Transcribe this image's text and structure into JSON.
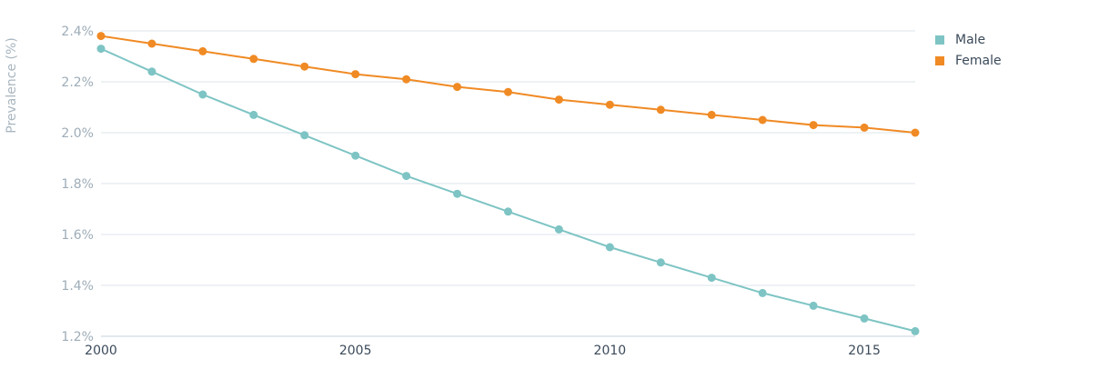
{
  "chart_data": {
    "type": "line",
    "x": [
      2000,
      2001,
      2002,
      2003,
      2004,
      2005,
      2006,
      2007,
      2008,
      2009,
      2010,
      2011,
      2012,
      2013,
      2014,
      2015,
      2016
    ],
    "series": [
      {
        "name": "Male",
        "color": "#7ec4c4",
        "values": [
          2.33,
          2.24,
          2.15,
          2.07,
          1.99,
          1.91,
          1.83,
          1.76,
          1.69,
          1.62,
          1.55,
          1.49,
          1.43,
          1.37,
          1.32,
          1.27,
          1.22
        ]
      },
      {
        "name": "Female",
        "color": "#f08a24",
        "values": [
          2.38,
          2.35,
          2.32,
          2.29,
          2.26,
          2.23,
          2.21,
          2.18,
          2.16,
          2.13,
          2.11,
          2.09,
          2.07,
          2.05,
          2.03,
          2.02,
          2.0
        ]
      }
    ],
    "ylabel": "Prevalence (%)",
    "xlabel": "",
    "ylim": [
      1.2,
      2.4
    ],
    "xlim": [
      2000,
      2016
    ],
    "y_ticks": [
      "1.2%",
      "1.4%",
      "1.6%",
      "1.8%",
      "2.0%",
      "2.2%",
      "2.4%"
    ],
    "y_tick_values": [
      1.2,
      1.4,
      1.6,
      1.8,
      2.0,
      2.2,
      2.4
    ],
    "x_ticks": [
      "2000",
      "2005",
      "2010",
      "2015"
    ],
    "x_tick_values": [
      2000,
      2005,
      2010,
      2015
    ],
    "grid": true,
    "legend_position": "top-right"
  }
}
